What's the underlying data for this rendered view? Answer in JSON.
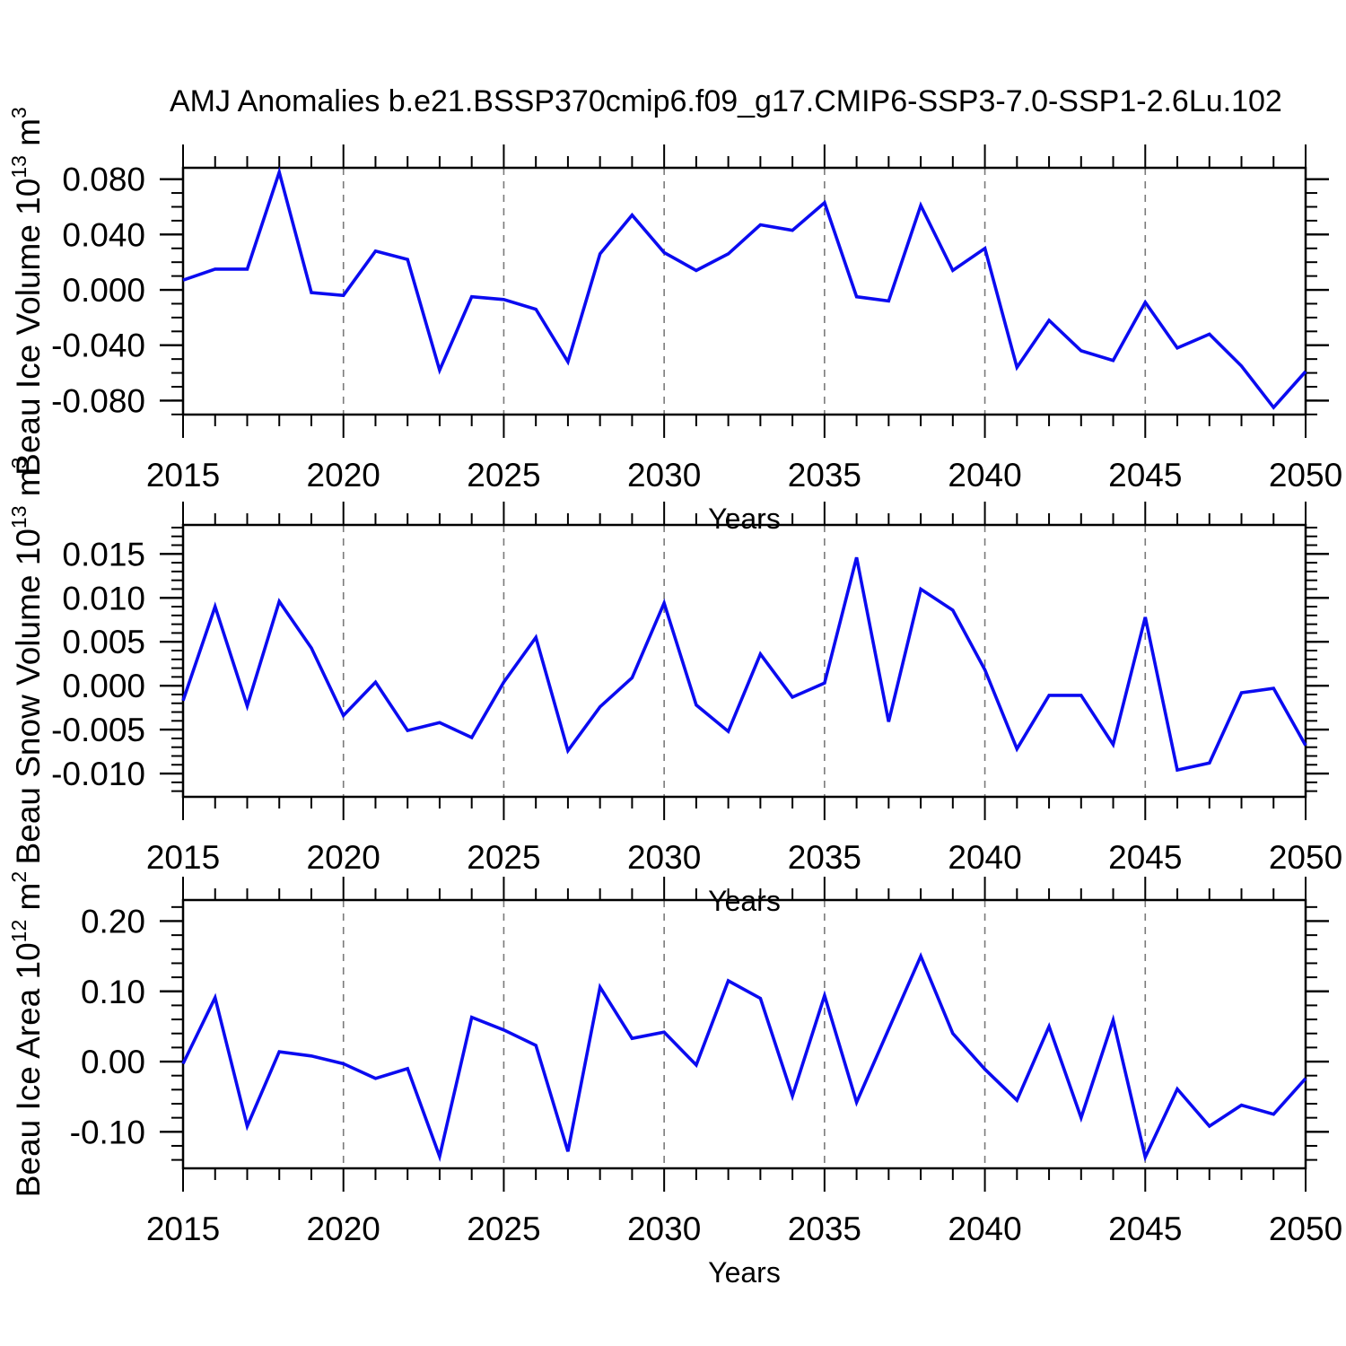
{
  "title": "AMJ Anomalies b.e21.BSSP370cmip6.f09_g17.CMIP6-SSP3-7.0-SSP1-2.6Lu.102",
  "colors": {
    "line": "#0b0bf0",
    "axis": "#000000",
    "grid": "#7a7a7a",
    "background": "#ffffff"
  },
  "x_axis": {
    "label": "Years",
    "tick_labels": [
      "2015",
      "2020",
      "2025",
      "2030",
      "2035",
      "2040",
      "2045",
      "2050"
    ],
    "tick_years": [
      2015,
      2020,
      2025,
      2030,
      2035,
      2040,
      2045,
      2050
    ],
    "grid_years": [
      2020,
      2025,
      2030,
      2035,
      2040,
      2045
    ],
    "years": [
      2015,
      2016,
      2017,
      2018,
      2019,
      2020,
      2021,
      2022,
      2023,
      2024,
      2025,
      2026,
      2027,
      2028,
      2029,
      2030,
      2031,
      2032,
      2033,
      2034,
      2035,
      2036,
      2037,
      2038,
      2039,
      2040,
      2041,
      2042,
      2043,
      2044,
      2045,
      2046,
      2047,
      2048,
      2049,
      2050
    ]
  },
  "chart_data": [
    {
      "type": "line",
      "name": "ice-volume-panel",
      "ylabel_text": "Beau Ice Volume 10^13 m^3",
      "ylabel_parts": [
        {
          "text": "Beau Ice Volume 10",
          "sup": false
        },
        {
          "text": "13",
          "sup": true
        },
        {
          "text": " m",
          "sup": false
        },
        {
          "text": "3",
          "sup": true
        }
      ],
      "xlabel": "Years",
      "ytick_labels": [
        "0.080",
        "0.040",
        "0.000",
        "-0.040",
        "-0.080"
      ],
      "ytick_values": [
        0.08,
        0.04,
        0.0,
        -0.04,
        -0.08
      ],
      "minor_step": 0.01,
      "ylim": [
        -0.0901,
        0.0882
      ],
      "grid": "vertical-dashed",
      "values": [
        0.007,
        0.015,
        0.015,
        0.085,
        -0.002,
        -0.004,
        0.028,
        0.022,
        -0.058,
        -0.005,
        -0.007,
        -0.014,
        -0.052,
        0.026,
        0.054,
        0.027,
        0.014,
        0.026,
        0.047,
        0.043,
        0.063,
        -0.005,
        -0.008,
        0.061,
        0.014,
        0.03,
        -0.056,
        -0.022,
        -0.044,
        -0.051,
        -0.009,
        -0.042,
        -0.032,
        -0.055,
        -0.085,
        -0.059
      ]
    },
    {
      "type": "line",
      "name": "snow-volume-panel",
      "ylabel_text": "Beau Snow Volume 10^13 m^3",
      "ylabel_parts": [
        {
          "text": "Beau Snow Volume 10",
          "sup": false
        },
        {
          "text": "13",
          "sup": true
        },
        {
          "text": " m",
          "sup": false
        },
        {
          "text": "3",
          "sup": true
        }
      ],
      "xlabel": "Years",
      "ytick_labels": [
        "0.015",
        "0.010",
        "0.005",
        "0.000",
        "-0.005",
        "-0.010"
      ],
      "ytick_values": [
        0.015,
        0.01,
        0.005,
        0.0,
        -0.005,
        -0.01
      ],
      "minor_step": 0.001,
      "ylim": [
        -0.01265,
        0.0183
      ],
      "grid": "vertical-dashed",
      "values": [
        -0.0017,
        0.009,
        -0.0023,
        0.0096,
        0.0043,
        -0.0034,
        0.0004,
        -0.0051,
        -0.0042,
        -0.0059,
        0.0004,
        0.0055,
        -0.0074,
        -0.0024,
        0.0009,
        0.0094,
        -0.0022,
        -0.0052,
        0.0036,
        -0.0013,
        0.0003,
        0.0146,
        -0.0041,
        0.011,
        0.0086,
        0.0018,
        -0.0072,
        -0.0011,
        -0.0011,
        -0.0067,
        0.0078,
        -0.0096,
        -0.0088,
        -0.0008,
        -0.0003,
        -0.0068
      ]
    },
    {
      "type": "line",
      "name": "ice-area-panel",
      "ylabel_text": "Beau Ice Area 10^12 m^2",
      "ylabel_parts": [
        {
          "text": "Beau Ice Area 10",
          "sup": false
        },
        {
          "text": "12",
          "sup": true
        },
        {
          "text": " m",
          "sup": false
        },
        {
          "text": "2",
          "sup": true
        }
      ],
      "xlabel": "Years",
      "ytick_labels": [
        "0.20",
        "0.10",
        "0.00",
        "-0.10"
      ],
      "ytick_values": [
        0.2,
        0.1,
        0.0,
        -0.1
      ],
      "minor_step": 0.02,
      "ylim": [
        -0.152,
        0.23
      ],
      "grid": "vertical-dashed",
      "values": [
        -0.003,
        0.091,
        -0.092,
        0.014,
        0.008,
        -0.003,
        -0.024,
        -0.01,
        -0.135,
        0.063,
        0.045,
        0.023,
        -0.128,
        0.106,
        0.033,
        0.042,
        -0.005,
        0.115,
        0.09,
        -0.049,
        0.094,
        -0.058,
        0.046,
        0.15,
        0.04,
        -0.011,
        -0.055,
        0.05,
        -0.08,
        0.059,
        -0.136,
        -0.039,
        -0.092,
        -0.062,
        -0.075,
        -0.024
      ]
    }
  ]
}
